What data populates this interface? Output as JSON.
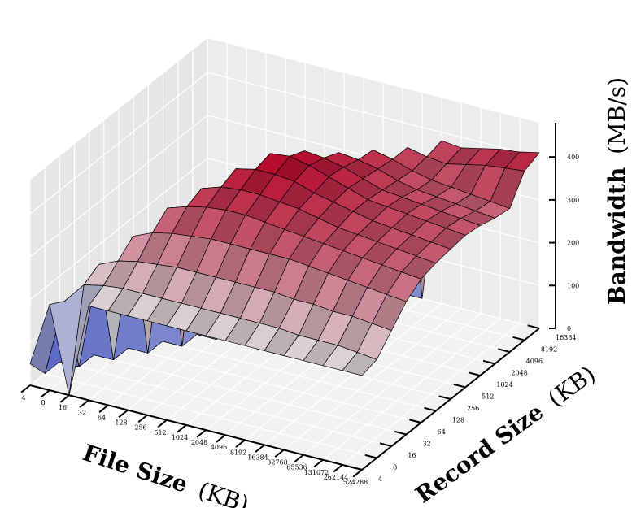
{
  "chart_data": {
    "type": "surface3d",
    "xlabel": "File Size",
    "xlabel_unit": "(KB)",
    "ylabel": "Record Size",
    "ylabel_unit": "(KB)",
    "zlabel": "Bandwidth",
    "zlabel_unit": "(MB/s)",
    "x_ticks": [
      "4",
      "8",
      "16",
      "32",
      "64",
      "128",
      "256",
      "512",
      "1024",
      "2048",
      "4096",
      "8192",
      "16384",
      "32768",
      "65536",
      "131072",
      "262144",
      "524288"
    ],
    "y_ticks": [
      "4",
      "8",
      "16",
      "32",
      "64",
      "128",
      "256",
      "512",
      "1024",
      "2048",
      "4096",
      "8192",
      "16384"
    ],
    "z_ticks": [
      "0",
      "100",
      "200",
      "300",
      "400"
    ],
    "zlim": [
      0,
      480
    ],
    "colormap": "coolwarm",
    "colors": {
      "low": "#3b4cc0",
      "mid": "#dddddd",
      "high": "#b40426"
    },
    "grid": true,
    "series": [
      {
        "name": "record_4",
        "values": [
          50,
          200,
          0,
          220,
          220,
          220,
          220,
          220,
          220,
          220,
          220,
          220,
          220,
          220,
          220,
          220,
          220,
          220
        ]
      },
      {
        "name": "record_8",
        "values": [
          0,
          180,
          230,
          240,
          245,
          245,
          245,
          245,
          245,
          245,
          245,
          245,
          245,
          240,
          240,
          240,
          235,
          230
        ]
      },
      {
        "name": "record_16",
        "values": [
          0,
          0,
          250,
          270,
          280,
          285,
          290,
          290,
          290,
          290,
          290,
          290,
          285,
          285,
          280,
          280,
          275,
          270
        ]
      },
      {
        "name": "record_32",
        "values": [
          0,
          0,
          0,
          300,
          320,
          330,
          335,
          340,
          340,
          340,
          340,
          340,
          335,
          330,
          325,
          320,
          315,
          310
        ]
      },
      {
        "name": "record_64",
        "values": [
          0,
          0,
          0,
          0,
          350,
          365,
          375,
          380,
          380,
          375,
          370,
          365,
          360,
          355,
          350,
          345,
          340,
          335
        ]
      },
      {
        "name": "record_128",
        "values": [
          0,
          0,
          0,
          0,
          0,
          380,
          395,
          400,
          400,
          395,
          390,
          380,
          370,
          365,
          360,
          355,
          350,
          345
        ]
      },
      {
        "name": "record_256",
        "values": [
          0,
          0,
          0,
          0,
          0,
          0,
          410,
          420,
          420,
          415,
          400,
          390,
          380,
          370,
          365,
          360,
          355,
          350
        ]
      },
      {
        "name": "record_512",
        "values": [
          0,
          0,
          0,
          0,
          0,
          0,
          0,
          430,
          435,
          425,
          410,
          395,
          380,
          375,
          370,
          365,
          360,
          355
        ]
      },
      {
        "name": "record_1024",
        "values": [
          0,
          0,
          0,
          0,
          0,
          0,
          0,
          0,
          420,
          415,
          405,
          390,
          375,
          370,
          365,
          360,
          355,
          350
        ]
      },
      {
        "name": "record_2048",
        "values": [
          0,
          0,
          0,
          0,
          0,
          0,
          0,
          0,
          0,
          400,
          395,
          385,
          370,
          360,
          355,
          350,
          345,
          340
        ]
      },
      {
        "name": "record_4096",
        "values": [
          0,
          0,
          0,
          0,
          0,
          0,
          0,
          0,
          0,
          0,
          390,
          380,
          365,
          355,
          350,
          345,
          340,
          335
        ]
      },
      {
        "name": "record_8192",
        "values": [
          0,
          0,
          0,
          0,
          0,
          0,
          0,
          0,
          0,
          0,
          0,
          380,
          370,
          365,
          375,
          385,
          390,
          395
        ]
      },
      {
        "name": "record_16384",
        "values": [
          0,
          0,
          0,
          0,
          0,
          0,
          0,
          0,
          0,
          0,
          0,
          0,
          380,
          375,
          385,
          395,
          400,
          410
        ]
      }
    ]
  }
}
